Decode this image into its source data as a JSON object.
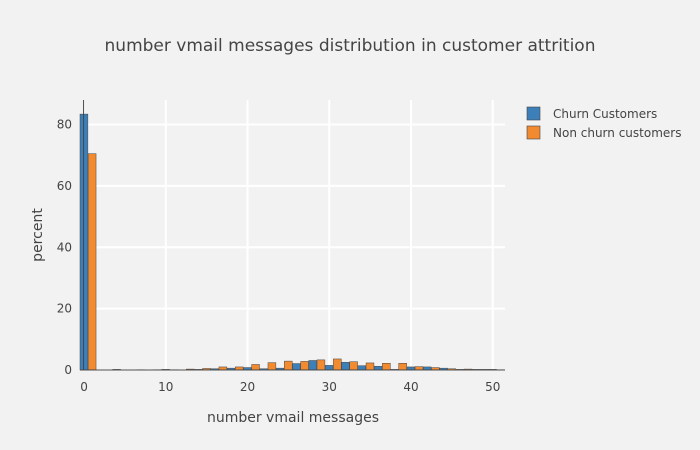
{
  "chart_data": {
    "type": "bar",
    "title": "number vmail messages distribution in customer attrition",
    "xlabel": "number vmail messages",
    "ylabel": "percent",
    "xlim": [
      -0.5,
      51.5
    ],
    "ylim": [
      0,
      88
    ],
    "xticks": [
      0,
      10,
      20,
      30,
      40,
      50
    ],
    "yticks": [
      0,
      20,
      40,
      60,
      80
    ],
    "grid": true,
    "legend_position": "top-right",
    "bin_width": 2,
    "x": [
      0,
      2,
      4,
      6,
      8,
      10,
      12,
      14,
      16,
      18,
      20,
      22,
      24,
      26,
      28,
      30,
      32,
      34,
      36,
      38,
      40,
      42,
      44,
      46,
      48,
      50
    ],
    "series": [
      {
        "name": "Churn Customers",
        "color": "#3d7fb8",
        "values": [
          83.4,
          0,
          0.2,
          0,
          0,
          0.2,
          0,
          0.2,
          0.4,
          0.6,
          0.8,
          0.4,
          0.6,
          2.1,
          3.1,
          1.5,
          2.5,
          1.4,
          1.2,
          0.2,
          1.0,
          1.0,
          0.6,
          0.2,
          0.2,
          0.2
        ]
      },
      {
        "name": "Non churn customers",
        "color": "#f28a30",
        "values": [
          70.5,
          0,
          0,
          0.1,
          0.1,
          0.1,
          0.3,
          0.5,
          1.0,
          1.0,
          1.8,
          2.4,
          2.9,
          2.8,
          3.3,
          3.6,
          2.7,
          2.3,
          2.2,
          2.2,
          1.1,
          0.8,
          0.4,
          0.3,
          0.2,
          0.1
        ]
      }
    ]
  }
}
